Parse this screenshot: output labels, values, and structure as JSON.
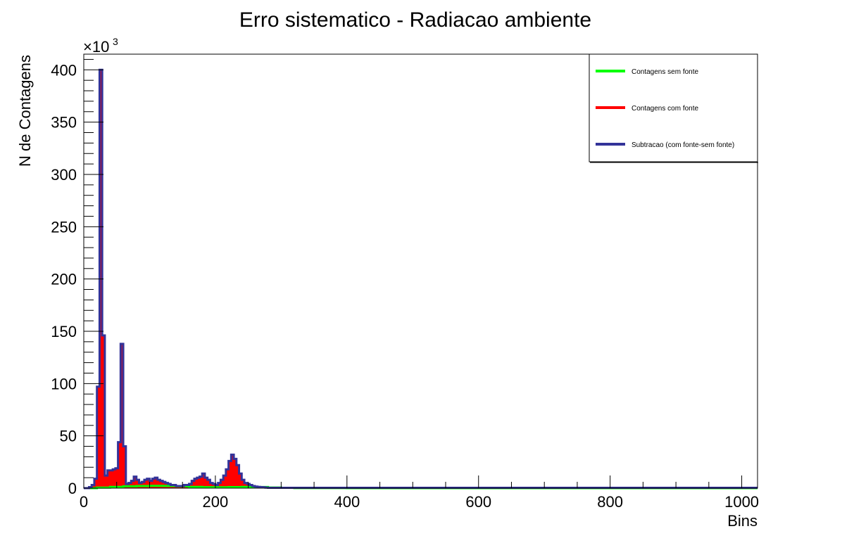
{
  "chart_data": {
    "type": "line",
    "title": "Erro sistematico - Radiacao ambiente",
    "xlabel": "Bins",
    "ylabel": "N de Contagens",
    "y_multiplier_label": "×10",
    "y_multiplier_exponent": "3",
    "xlim": [
      0,
      1024
    ],
    "ylim": [
      0,
      415
    ],
    "x_ticks": [
      "0",
      "200",
      "400",
      "600",
      "800",
      "1000"
    ],
    "y_ticks": [
      "0",
      "50",
      "100",
      "150",
      "200",
      "250",
      "300",
      "350",
      "400"
    ],
    "legend_position": "top-right",
    "grid": false,
    "bin_width": 4,
    "series": [
      {
        "name": "Contagens sem fonte",
        "color": "#00ff00",
        "x": [
          0,
          20,
          40,
          60,
          80,
          100,
          120,
          140,
          160,
          180,
          200,
          220,
          240,
          260,
          280,
          300,
          320,
          400,
          1024
        ],
        "values": [
          0,
          0.5,
          1.2,
          1.8,
          2.0,
          2.2,
          2.1,
          1.8,
          1.2,
          0.9,
          0.8,
          1.0,
          1.2,
          1.1,
          0.6,
          0.3,
          0.1,
          0,
          0
        ]
      },
      {
        "name": "Contagens com fonte",
        "color": "#ff0000",
        "x": [
          0,
          8,
          12,
          16,
          20,
          24,
          28,
          32,
          36,
          40,
          44,
          48,
          52,
          56,
          60,
          64,
          68,
          72,
          76,
          80,
          84,
          88,
          92,
          96,
          100,
          104,
          108,
          112,
          116,
          120,
          124,
          128,
          132,
          136,
          140,
          144,
          148,
          152,
          156,
          160,
          164,
          168,
          172,
          176,
          180,
          184,
          188,
          192,
          196,
          200,
          204,
          208,
          212,
          216,
          220,
          224,
          228,
          232,
          236,
          240,
          244,
          248,
          252,
          256,
          260,
          264,
          268,
          272,
          276,
          280,
          284,
          288,
          292,
          296,
          300,
          304,
          308,
          312,
          316,
          320,
          1024
        ],
        "values": [
          0,
          1,
          3,
          9,
          97,
          400,
          146,
          12,
          17,
          17,
          18,
          19,
          44,
          138,
          40,
          4,
          5,
          7,
          11,
          8,
          5,
          6,
          8,
          9,
          7,
          9,
          10,
          8,
          7,
          6,
          5,
          4,
          3,
          3,
          2,
          2,
          2,
          3,
          3,
          4,
          7,
          9,
          10,
          11,
          14,
          10,
          8,
          5,
          4,
          3,
          5,
          8,
          12,
          18,
          26,
          32,
          28,
          22,
          14,
          8,
          5,
          4,
          3,
          2,
          1.5,
          1.2,
          1,
          0.8,
          0.5,
          0.3,
          0.3,
          0.3,
          0.3,
          0.3,
          0.3,
          0.3,
          0.3,
          0.3,
          0.3,
          0.3,
          0.3
        ]
      },
      {
        "name": "Subtracao (com fonte-sem fonte)",
        "color": "#333399",
        "x": [
          0,
          8,
          12,
          16,
          20,
          24,
          28,
          32,
          36,
          40,
          44,
          48,
          52,
          56,
          60,
          64,
          68,
          72,
          76,
          80,
          84,
          88,
          92,
          96,
          100,
          104,
          108,
          112,
          116,
          120,
          124,
          128,
          132,
          136,
          140,
          144,
          148,
          152,
          156,
          160,
          164,
          168,
          172,
          176,
          180,
          184,
          188,
          192,
          196,
          200,
          204,
          208,
          212,
          216,
          220,
          224,
          228,
          232,
          236,
          240,
          244,
          248,
          252,
          256,
          260,
          264,
          268,
          272,
          276,
          280,
          284,
          288,
          292,
          296,
          300,
          304,
          308,
          312,
          316,
          320,
          1024
        ],
        "values": [
          0,
          1,
          3,
          9,
          97,
          400,
          146,
          12,
          17,
          17,
          18,
          19,
          44,
          138,
          40,
          4,
          5,
          7,
          11,
          8,
          5,
          6,
          8,
          9,
          7,
          9,
          10,
          8,
          7,
          6,
          5,
          4,
          3,
          3,
          2,
          2,
          2,
          3,
          3,
          4,
          7,
          9,
          10,
          11,
          14,
          10,
          8,
          5,
          4,
          3,
          5,
          8,
          12,
          18,
          26,
          32,
          28,
          22,
          14,
          8,
          5,
          4,
          3,
          2,
          1.5,
          1.2,
          1,
          0.8,
          0.5,
          0.3,
          0.3,
          0.3,
          0.3,
          0.3,
          0.3,
          0.3,
          0.3,
          0.3,
          0.3,
          0.3,
          0.3
        ]
      }
    ]
  }
}
